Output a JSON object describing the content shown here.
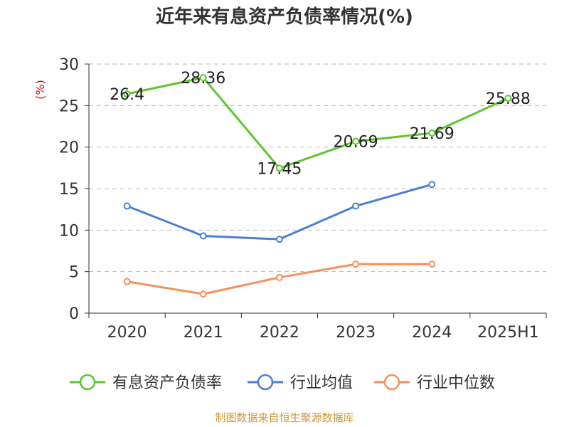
{
  "chart_data": {
    "type": "line",
    "title": "近年来有息资产负债率情况(%)",
    "y_unit": "(%)",
    "categories": [
      "2020",
      "2021",
      "2022",
      "2023",
      "2024",
      "2025H1"
    ],
    "ylim": [
      0,
      30
    ],
    "yticks": [
      0,
      5,
      10,
      15,
      20,
      25,
      30
    ],
    "grid": true,
    "legend_position": "bottom",
    "series": [
      {
        "name": "有息资产负债率",
        "color": "#5cc531",
        "values": [
          26.4,
          28.36,
          17.45,
          20.69,
          21.69,
          25.88
        ],
        "labels": [
          "26.4",
          "28.36",
          "17.45",
          "20.69",
          "21.69",
          "25.88"
        ]
      },
      {
        "name": "行业均值",
        "color": "#4a7fd8",
        "values": [
          12.9,
          9.3,
          8.9,
          12.9,
          15.5,
          null
        ]
      },
      {
        "name": "行业中位数",
        "color": "#f5905a",
        "values": [
          3.8,
          2.3,
          4.3,
          5.9,
          5.9,
          null
        ]
      }
    ]
  },
  "source": "制图数据来自恒生聚源数据库"
}
